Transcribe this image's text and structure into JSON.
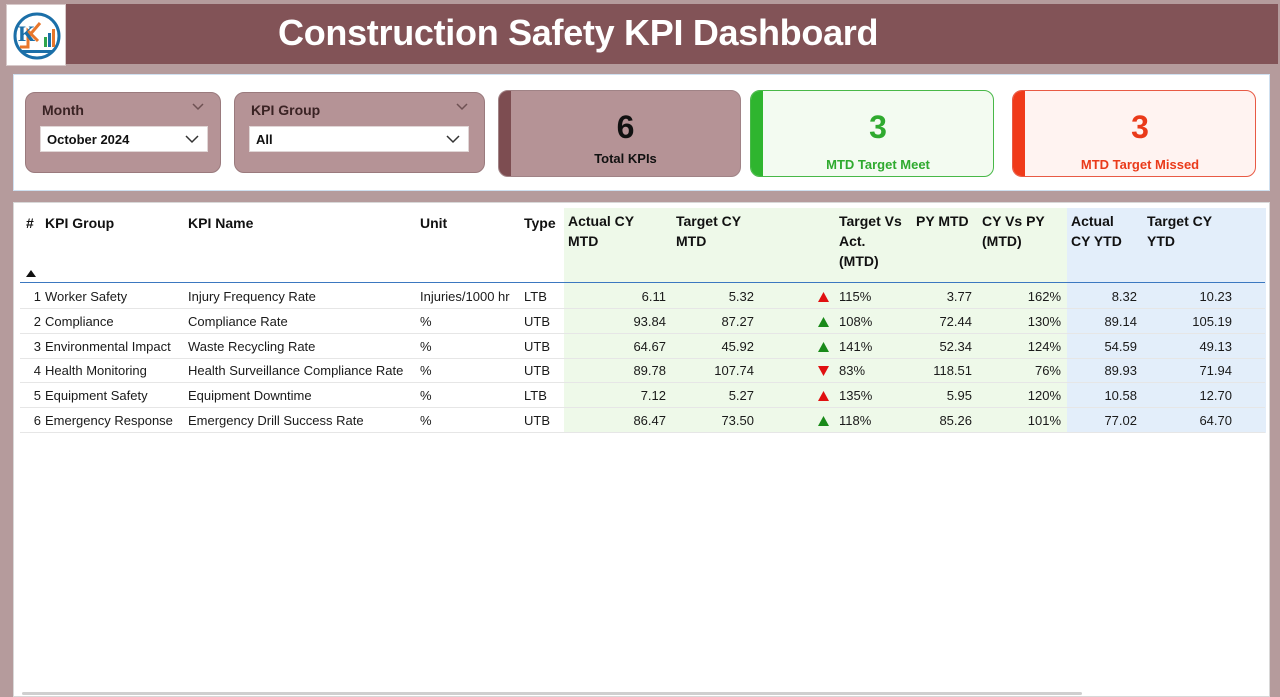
{
  "header": {
    "title": "Construction Safety KPI Dashboard",
    "logo_icon": "company-logo-icon",
    "more_options": "..."
  },
  "filters": {
    "month": {
      "label": "Month",
      "value": "October 2024"
    },
    "kpi_group": {
      "label": "KPI Group",
      "value": "All"
    }
  },
  "cards": {
    "total": {
      "value": "6",
      "label": "Total KPIs"
    },
    "meet": {
      "value": "3",
      "label": "MTD Target Meet"
    },
    "missed": {
      "value": "3",
      "label": "MTD Target Missed"
    }
  },
  "colors": {
    "header_bg": "#825357",
    "card_total": "#b59396",
    "meet_green": "#2faa2f",
    "missed_red": "#ea3a1a",
    "mtd_column_bg": "#eef9e9",
    "ytd_column_bg": "#e3eefa",
    "arrow_up": "#198a19",
    "arrow_down": "#e01010"
  },
  "table": {
    "columns": {
      "num": "#",
      "group": "KPI Group",
      "name": "KPI Name",
      "unit": "Unit",
      "type": "Type",
      "actual_mtd": [
        "Actual CY",
        "MTD"
      ],
      "target_mtd": [
        "Target CY",
        "MTD"
      ],
      "tva_mtd": [
        "Target Vs",
        "Act.",
        "(MTD)"
      ],
      "py_mtd": [
        "PY MTD"
      ],
      "cyvpy_mtd": [
        "CY Vs PY",
        "(MTD)"
      ],
      "actual_ytd": [
        "Actual",
        "CY YTD"
      ],
      "target_ytd": [
        "Target CY",
        "YTD"
      ]
    },
    "rows": [
      {
        "num": "1",
        "group": "Worker Safety",
        "name": "Injury Frequency Rate",
        "unit": "Injuries/1000 hr",
        "type": "LTB",
        "actual_mtd": "6.11",
        "target_mtd": "5.32",
        "arrow": "up",
        "arrow_color": "#e01010",
        "tva_mtd": "115%",
        "py_mtd": "3.77",
        "cyvpy_mtd": "162%",
        "actual_ytd": "8.32",
        "target_ytd": "10.23"
      },
      {
        "num": "2",
        "group": "Compliance",
        "name": "Compliance Rate",
        "unit": "%",
        "type": "UTB",
        "actual_mtd": "93.84",
        "target_mtd": "87.27",
        "arrow": "up",
        "arrow_color": "#198a19",
        "tva_mtd": "108%",
        "py_mtd": "72.44",
        "cyvpy_mtd": "130%",
        "actual_ytd": "89.14",
        "target_ytd": "105.19"
      },
      {
        "num": "3",
        "group": "Environmental Impact",
        "name": "Waste Recycling Rate",
        "unit": "%",
        "type": "UTB",
        "actual_mtd": "64.67",
        "target_mtd": "45.92",
        "arrow": "up",
        "arrow_color": "#198a19",
        "tva_mtd": "141%",
        "py_mtd": "52.34",
        "cyvpy_mtd": "124%",
        "actual_ytd": "54.59",
        "target_ytd": "49.13"
      },
      {
        "num": "4",
        "group": "Health Monitoring",
        "name": "Health Surveillance Compliance Rate",
        "unit": "%",
        "type": "UTB",
        "actual_mtd": "89.78",
        "target_mtd": "107.74",
        "arrow": "down",
        "arrow_color": "#e01010",
        "tva_mtd": "83%",
        "py_mtd": "118.51",
        "cyvpy_mtd": "76%",
        "actual_ytd": "89.93",
        "target_ytd": "71.94"
      },
      {
        "num": "5",
        "group": "Equipment Safety",
        "name": "Equipment Downtime",
        "unit": "%",
        "type": "LTB",
        "actual_mtd": "7.12",
        "target_mtd": "5.27",
        "arrow": "up",
        "arrow_color": "#e01010",
        "tva_mtd": "135%",
        "py_mtd": "5.95",
        "cyvpy_mtd": "120%",
        "actual_ytd": "10.58",
        "target_ytd": "12.70"
      },
      {
        "num": "6",
        "group": "Emergency Response",
        "name": "Emergency Drill Success Rate",
        "unit": "%",
        "type": "UTB",
        "actual_mtd": "86.47",
        "target_mtd": "73.50",
        "arrow": "up",
        "arrow_color": "#198a19",
        "tva_mtd": "118%",
        "py_mtd": "85.26",
        "cyvpy_mtd": "101%",
        "actual_ytd": "77.02",
        "target_ytd": "64.70"
      }
    ]
  }
}
